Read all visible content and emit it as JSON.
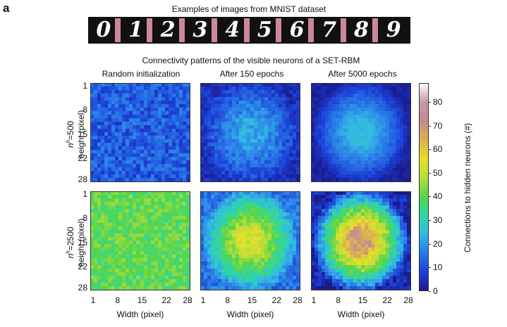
{
  "panel_label": "a",
  "mnist": {
    "title": "Examples of images from MNIST dataset",
    "digits": [
      "0",
      "1",
      "2",
      "3",
      "4",
      "5",
      "6",
      "7",
      "8",
      "9"
    ]
  },
  "figure_title": "Connectivity patterns of the visible neurons of a SET-RBM",
  "colors": {
    "colormap": [
      "#1a1a8a",
      "#1c3fd6",
      "#2a7ae8",
      "#33b8e6",
      "#2ed6a8",
      "#55d64a",
      "#b7dd3a",
      "#e8e02a",
      "#d9b24f",
      "#c48a95",
      "#c59aa3",
      "#ffffff"
    ],
    "strip_separator": "#c98a96"
  },
  "chart_data": {
    "type": "heatmap",
    "columns": [
      "Random initialization",
      "After 150 epochs",
      "After 5000 epochs"
    ],
    "rows": [
      "n^h=500",
      "n^h=2500"
    ],
    "row_labels": [
      {
        "prefix": "n",
        "sup": "h",
        "suffix": "=500",
        "second": "height (pixel)"
      },
      {
        "prefix": "n",
        "sup": "h",
        "suffix": "=2500",
        "second": "height (pixel)"
      }
    ],
    "grid_size": [
      28,
      28
    ],
    "xlabel": "Width (pixel)",
    "ylabel": "height (pixel)",
    "xticks": [
      1,
      8,
      15,
      22,
      28
    ],
    "yticks": [
      1,
      8,
      15,
      22,
      28
    ],
    "colorbar": {
      "label": "Connections to hidden neurons (#)",
      "range": [
        0,
        88
      ],
      "ticks": [
        0,
        10,
        20,
        30,
        40,
        50,
        60,
        70,
        80
      ]
    },
    "panels": [
      {
        "row": "n^h=500",
        "column": "Random initialization",
        "pattern": "uniform",
        "center_value": 12,
        "edge_value": 12,
        "noise": 6
      },
      {
        "row": "n^h=500",
        "column": "After 150 epochs",
        "pattern": "centered",
        "center_value": 22,
        "edge_value": 5,
        "noise": 4
      },
      {
        "row": "n^h=500",
        "column": "After 5000 epochs",
        "pattern": "centered",
        "center_value": 25,
        "edge_value": 2,
        "noise": 2
      },
      {
        "row": "n^h=2500",
        "column": "Random initialization",
        "pattern": "uniform",
        "center_value": 40,
        "edge_value": 40,
        "noise": 6
      },
      {
        "row": "n^h=2500",
        "column": "After 150 epochs",
        "pattern": "centered",
        "center_value": 52,
        "edge_value": 15,
        "noise": 5
      },
      {
        "row": "n^h=2500",
        "column": "After 5000 epochs",
        "pattern": "centered",
        "center_value": 68,
        "edge_value": 3,
        "noise": 6
      }
    ]
  }
}
